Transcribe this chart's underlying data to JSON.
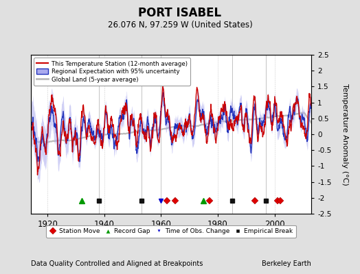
{
  "title": "PORT ISABEL",
  "subtitle": "26.076 N, 97.259 W (United States)",
  "ylabel": "Temperature Anomaly (°C)",
  "xlabel_bottom": "Data Quality Controlled and Aligned at Breakpoints",
  "xlabel_right": "Berkeley Earth",
  "ylim": [
    -2.5,
    2.5
  ],
  "xlim": [
    1914,
    2013
  ],
  "yticks": [
    -2.5,
    -2,
    -1.5,
    -1,
    -0.5,
    0,
    0.5,
    1,
    1.5,
    2,
    2.5
  ],
  "xticks": [
    1920,
    1940,
    1960,
    1980,
    2000
  ],
  "bg_color": "#e0e0e0",
  "plot_bg_color": "#ffffff",
  "legend_items": [
    {
      "label": "This Temperature Station (12-month average)",
      "color": "#dd0000",
      "lw": 1.5
    },
    {
      "label": "Regional Expectation with 95% uncertainty",
      "color": "#3333cc",
      "lw": 1.5
    },
    {
      "label": "Global Land (5-year average)",
      "color": "#aaaaaa",
      "lw": 2.0
    }
  ],
  "marker_legend": [
    {
      "label": "Station Move",
      "color": "#dd0000",
      "marker": "D"
    },
    {
      "label": "Record Gap",
      "color": "#009900",
      "marker": "^"
    },
    {
      "label": "Time of Obs. Change",
      "color": "#0000cc",
      "marker": "v"
    },
    {
      "label": "Empirical Break",
      "color": "#111111",
      "marker": "s"
    }
  ],
  "station_moves": [
    1962,
    1965,
    1977,
    1993,
    2001,
    2002
  ],
  "record_gaps": [
    1932,
    1975
  ],
  "tobs_changes": [
    1960
  ],
  "empirical_breaks": [
    1938,
    1953,
    1985,
    1997
  ],
  "vertical_lines": [
    1938,
    1953,
    1960,
    1985,
    1997
  ]
}
